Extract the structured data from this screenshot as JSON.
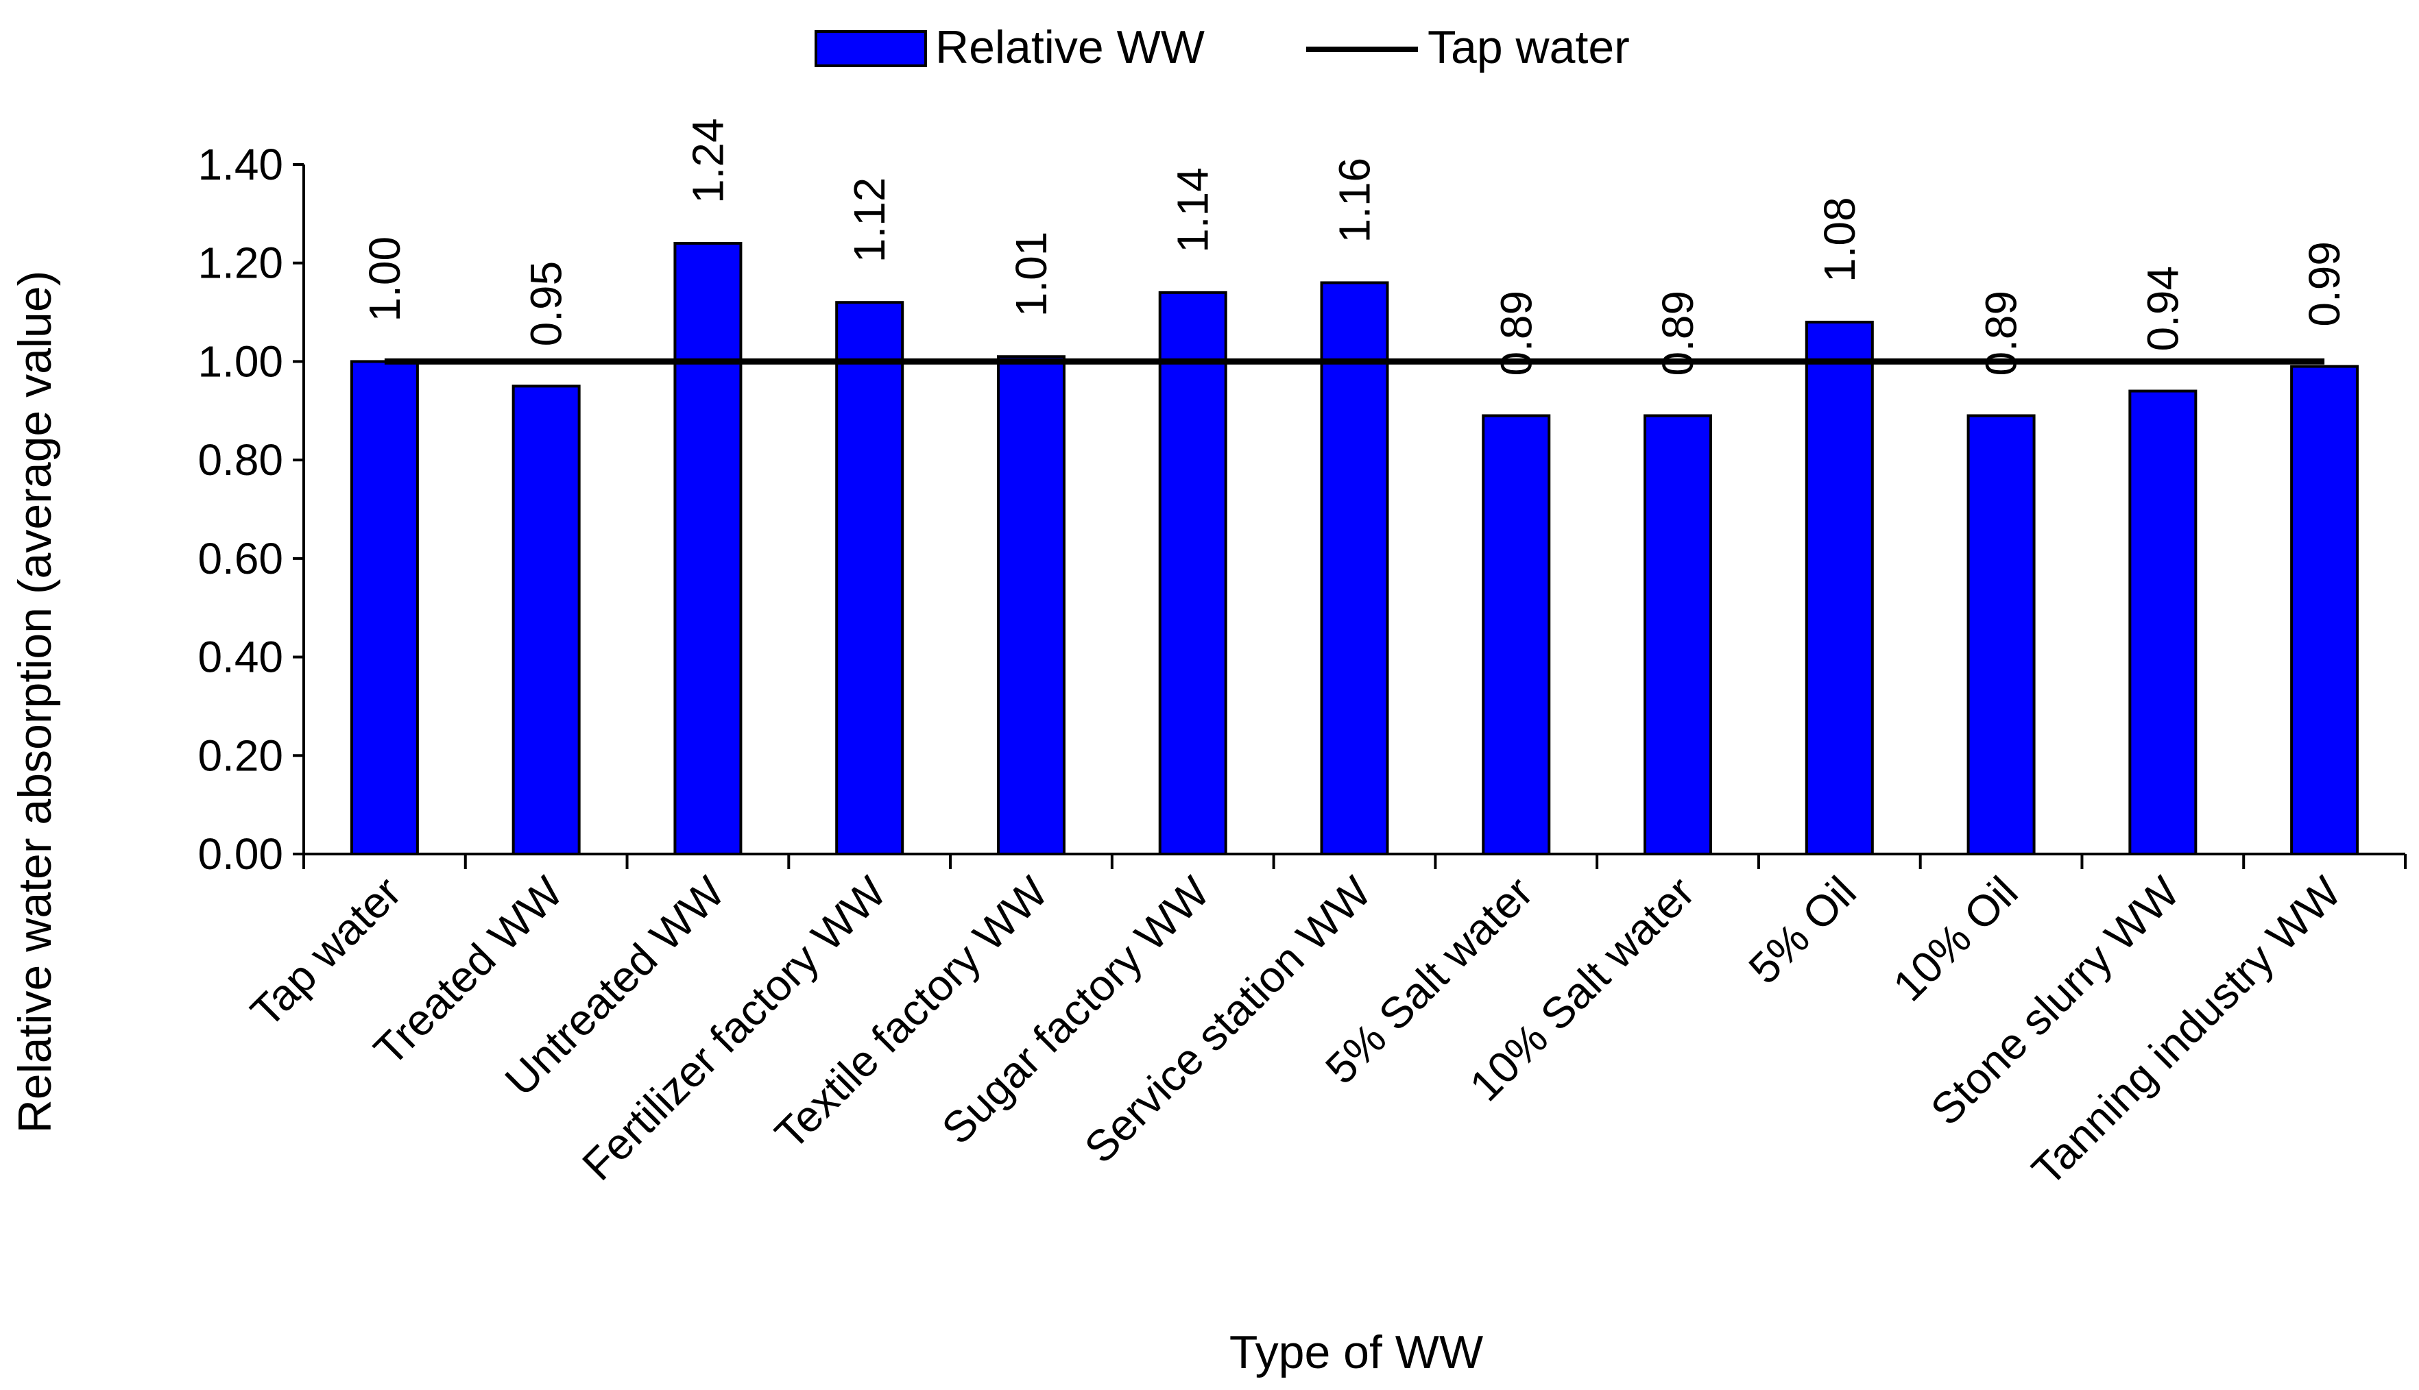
{
  "chart_data": {
    "type": "bar",
    "title": "",
    "xlabel": "Type of WW",
    "ylabel": "Relative water absorption (average value)",
    "ylim": [
      0,
      1.4
    ],
    "yticks": [
      "0.00",
      "0.20",
      "0.40",
      "0.60",
      "0.80",
      "1.00",
      "1.20",
      "1.40"
    ],
    "categories": [
      "Tap water",
      "Treated WW",
      "Untreated WW",
      "Fertilizer factory WW",
      "Textile factory WW",
      "Sugar factory WW",
      "Service station WW",
      "5% Salt water",
      "10% Salt water",
      "5% Oil",
      "10% Oil",
      "Stone slurry WW",
      "Tanning industry WW"
    ],
    "series": [
      {
        "name": "Relative WW",
        "type": "bar",
        "color": "#0000FF",
        "values": [
          1.0,
          0.95,
          1.24,
          1.12,
          1.01,
          1.14,
          1.16,
          0.89,
          0.89,
          1.08,
          0.89,
          0.94,
          0.99
        ],
        "labels": [
          "1.00",
          "0.95",
          "1.24",
          "1.12",
          "1.01",
          "1.14",
          "1.16",
          "0.89",
          "0.89",
          "1.08",
          "0.89",
          "0.94",
          "0.99"
        ]
      },
      {
        "name": "Tap water",
        "type": "line",
        "color": "#000000",
        "value": 1.0
      }
    ],
    "legend": {
      "placement": "top-center",
      "entries": [
        "Relative WW",
        "Tap water"
      ]
    }
  }
}
